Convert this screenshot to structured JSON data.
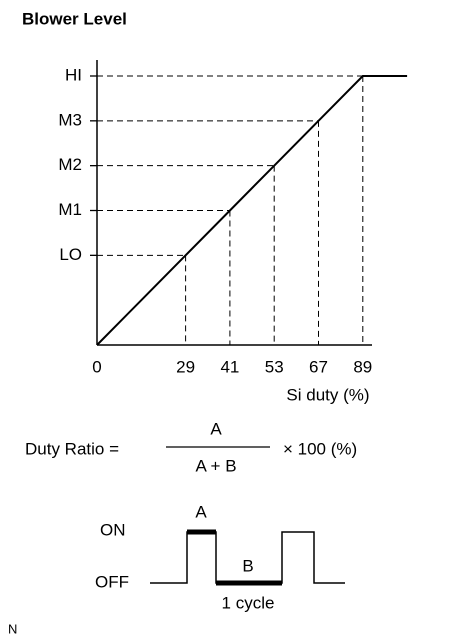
{
  "chart_data": {
    "type": "line",
    "title": "Blower Level",
    "x_label": "Si duty (%)",
    "categories": [
      "0",
      null,
      "29",
      "41",
      "53",
      "67",
      "89",
      null
    ],
    "series": [
      {
        "color": "#000000",
        "values": [
          0,
          1,
          2,
          3,
          4,
          5,
          6,
          6
        ]
      }
    ],
    "ylim": [
      0,
      6
    ],
    "yticks": [
      {
        "value": 2,
        "label": "LO"
      },
      {
        "value": 3,
        "label": "M1"
      },
      {
        "value": 4,
        "label": "M2"
      },
      {
        "value": 5,
        "label": "M3"
      },
      {
        "value": 6,
        "label": "HI"
      }
    ]
  },
  "formula": {
    "label": "Duty Ratio =",
    "numerator": "A",
    "denominator": "A + B",
    "multiplier": "× 100 (%)"
  },
  "pulse": {
    "on": "ON",
    "off": "OFF",
    "high_label": "A",
    "low_label": "B",
    "cycle": "1 cycle"
  },
  "footer": "N"
}
